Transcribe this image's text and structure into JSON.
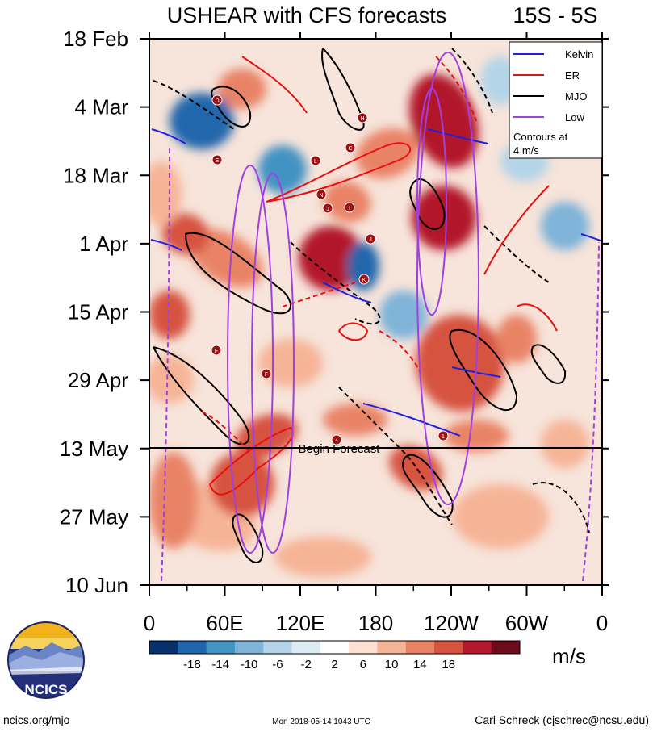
{
  "chart_data": {
    "type": "heatmap",
    "title": "USHEAR with CFS forecasts",
    "region": "15S - 5S",
    "y_ticks": [
      "18 Feb",
      "4 Mar",
      "18 Mar",
      "1 Apr",
      "15 Apr",
      "29 Apr",
      "13 May",
      "27 May",
      "10 Jun"
    ],
    "x_ticks": [
      "0",
      "60E",
      "120E",
      "180",
      "120W",
      "60W",
      "0"
    ],
    "x_range": [
      0,
      360
    ],
    "forecast_start": "13 May",
    "forecast_label": "Begin Forecast",
    "legend": {
      "entries": [
        {
          "label": "Kelvin",
          "color": "#2020e0"
        },
        {
          "label": "ER",
          "color": "#e81010"
        },
        {
          "label": "MJO",
          "color": "#000000"
        },
        {
          "label": "Low",
          "color": "#a040e0"
        }
      ],
      "note_line1": "Contours at",
      "note_line2": "4 m/s",
      "placement": "top-right"
    },
    "colorbar": {
      "unit": "m/s",
      "tick_labels": [
        "-18",
        "-14",
        "-10",
        "-6",
        "-2",
        "2",
        "6",
        "10",
        "14",
        "18"
      ],
      "colors": [
        "#08306b",
        "#2166ac",
        "#4393c3",
        "#7fb3d8",
        "#b4d4e8",
        "#dcebf4",
        "#ffffff",
        "#fde0d2",
        "#f6b497",
        "#e98366",
        "#d6533f",
        "#b2182b",
        "#6d0a1c"
      ]
    },
    "storm_markers": [
      "D",
      "H",
      "E",
      "C",
      "L",
      "N",
      "J",
      "I",
      "J",
      "K",
      "F",
      "F",
      "4",
      "1"
    ]
  },
  "footer": {
    "left": "ncics.org/mjo",
    "center": "Mon 2018-05-14 1043 UTC",
    "right": "Carl Schreck (cjschrec@ncsu.edu)",
    "logo_text": "NCICS"
  }
}
